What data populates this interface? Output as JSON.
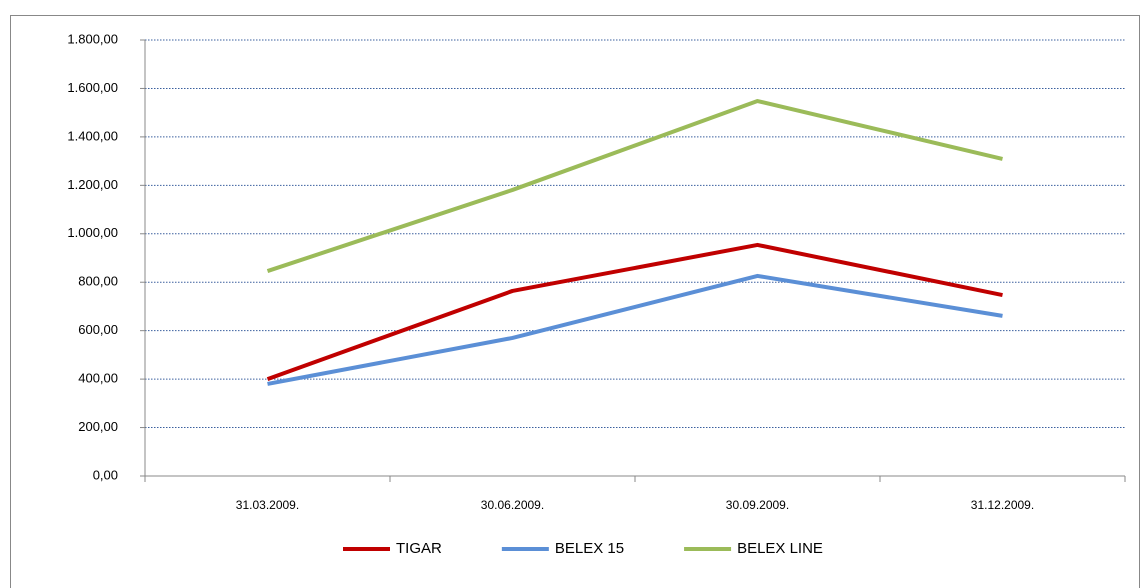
{
  "chart_data": {
    "type": "line",
    "categories": [
      "31.03.2009.",
      "30.06.2009.",
      "30.09.2009.",
      "31.12.2009."
    ],
    "series": [
      {
        "name": "TIGAR",
        "color": "#c00000",
        "values": [
          400,
          764,
          954,
          747
        ]
      },
      {
        "name": "BELEX 15",
        "color": "#5b8fd6",
        "values": [
          380,
          570,
          826,
          661
        ]
      },
      {
        "name": "BELEX LINE",
        "color": "#9bbb59",
        "values": [
          846,
          1181,
          1548,
          1309
        ]
      }
    ],
    "ylim": [
      0,
      1800
    ],
    "yticks": [
      {
        "value": 0,
        "label": "0,00"
      },
      {
        "value": 200,
        "label": "200,00"
      },
      {
        "value": 400,
        "label": "400,00"
      },
      {
        "value": 600,
        "label": "600,00"
      },
      {
        "value": 800,
        "label": "800,00"
      },
      {
        "value": 1000,
        "label": "1.000,00"
      },
      {
        "value": 1200,
        "label": "1.200,00"
      },
      {
        "value": 1400,
        "label": "1.400,00"
      },
      {
        "value": 1600,
        "label": "1.600,00"
      },
      {
        "value": 1800,
        "label": "1.800,00"
      }
    ],
    "grid": true,
    "legend": "bottom"
  }
}
